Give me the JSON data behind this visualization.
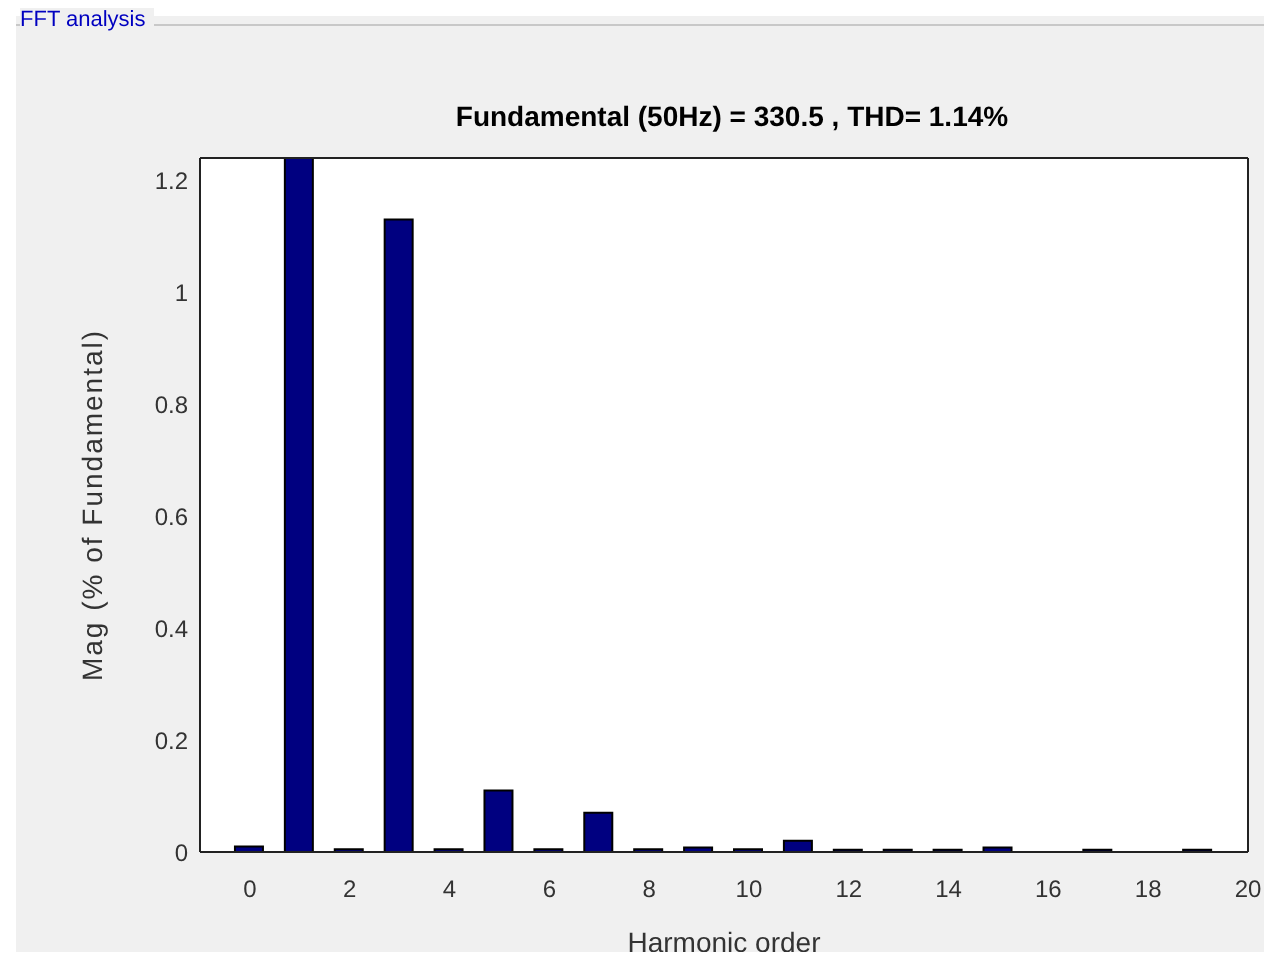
{
  "chart_data": {
    "type": "bar",
    "title": "Fundamental (50Hz) = 330.5 , THD= 1.14%",
    "xlabel": "Harmonic order",
    "ylabel": "Mag (% of Fundamental)",
    "annotations": [
      "FFT analysis"
    ],
    "x": [
      0,
      1,
      2,
      3,
      4,
      5,
      6,
      7,
      8,
      9,
      10,
      11,
      12,
      13,
      14,
      15,
      16,
      17,
      18,
      19
    ],
    "values": [
      0.01,
      1.24,
      0.005,
      1.13,
      0.005,
      0.11,
      0.005,
      0.07,
      0.005,
      0.008,
      0.005,
      0.02,
      0.004,
      0.004,
      0.004,
      0.008,
      0,
      0.004,
      0,
      0.004
    ],
    "color": "#000080",
    "xlim": [
      -1,
      20
    ],
    "xticks": [
      0,
      2,
      4,
      6,
      8,
      10,
      12,
      14,
      16,
      18,
      20
    ],
    "ylim": [
      0,
      1.24
    ],
    "yticks": [
      0,
      0.2,
      0.4,
      0.6,
      0.8,
      1,
      1.2
    ],
    "grid": false
  }
}
